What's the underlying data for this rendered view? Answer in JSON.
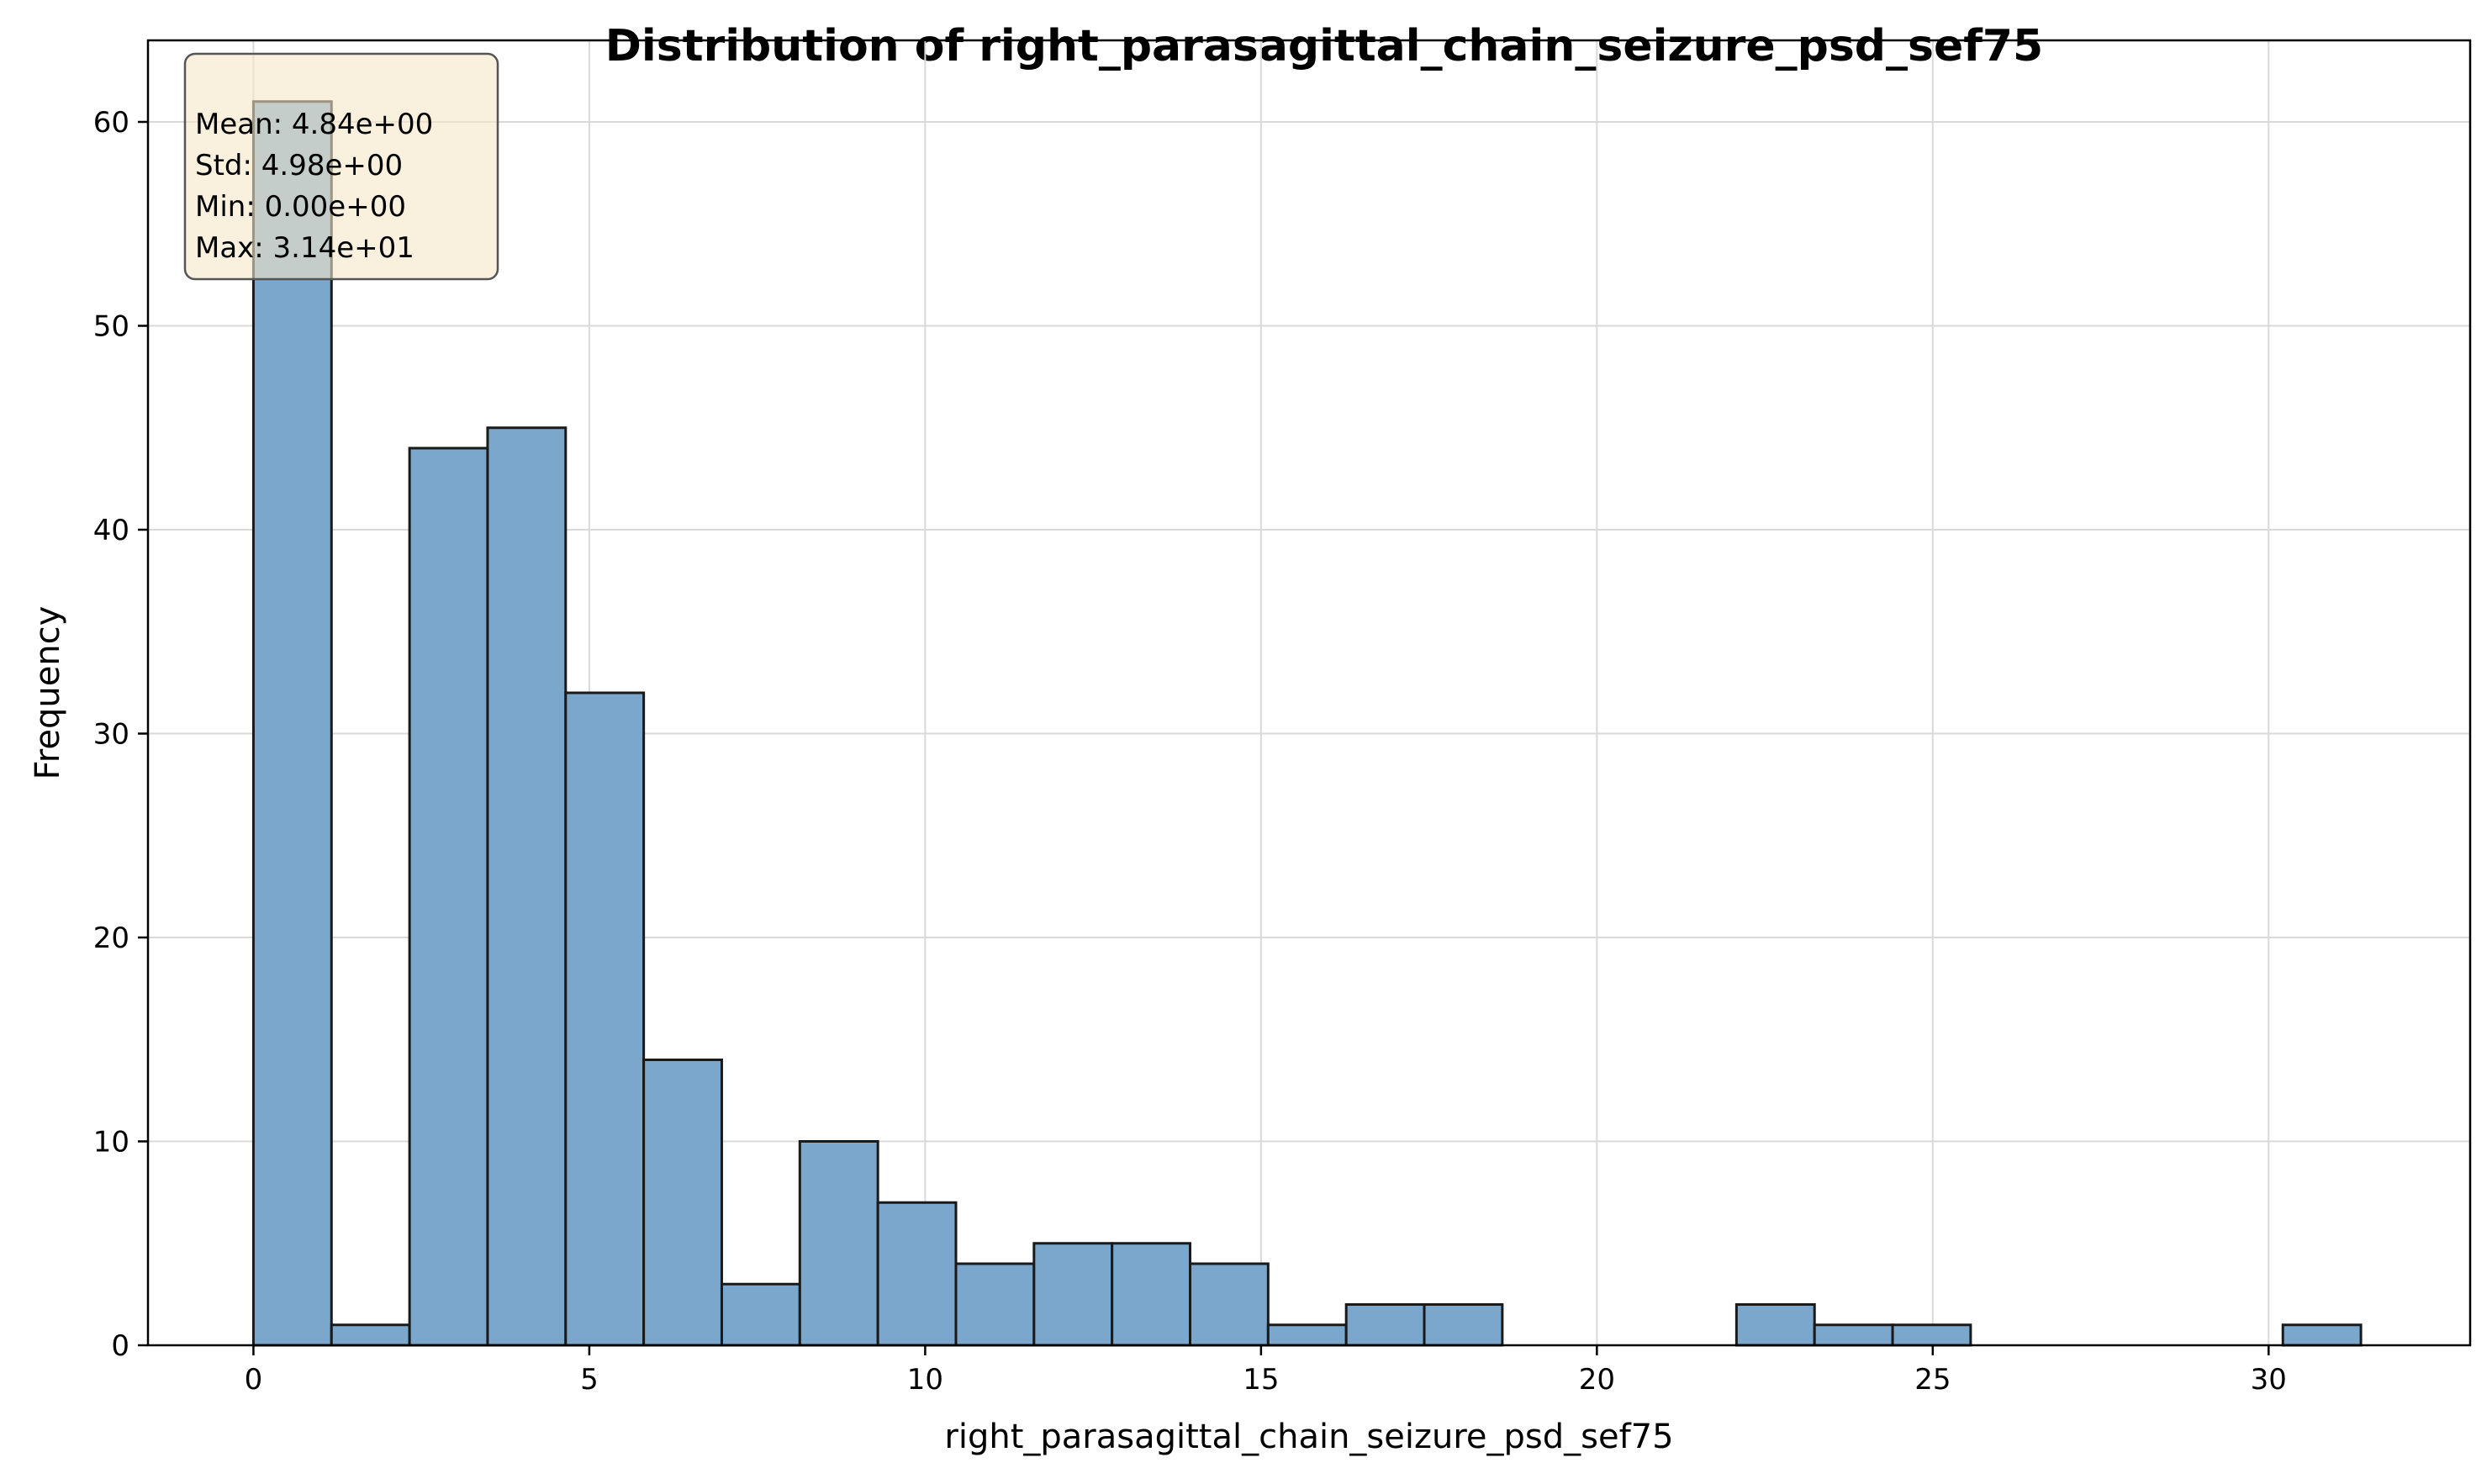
{
  "chart_data": {
    "type": "bar",
    "title": "Distribution of right_parasagittal_chain_seizure_psd_sef75",
    "xlabel": "right_parasagittal_chain_seizure_psd_sef75",
    "ylabel": "Frequency",
    "xlim": [
      -1.57,
      33.0
    ],
    "ylim": [
      0,
      64
    ],
    "xticks": [
      0,
      5,
      10,
      15,
      20,
      25,
      30
    ],
    "yticks": [
      0,
      10,
      20,
      30,
      40,
      50,
      60
    ],
    "grid": true,
    "bins": {
      "start": 0.0,
      "width": 1.162,
      "counts": [
        61,
        1,
        44,
        45,
        32,
        14,
        3,
        10,
        7,
        4,
        5,
        5,
        4,
        1,
        2,
        2,
        0,
        0,
        0,
        2,
        1,
        1,
        0,
        0,
        0,
        0,
        1
      ]
    },
    "bar_color": "#7ba7cc",
    "edge_color": "#1a1a1a",
    "stats_box": {
      "lines": [
        "Mean: 4.84e+00",
        "Std: 4.98e+00",
        "Min: 0.00e+00",
        "Max: 3.14e+01"
      ],
      "background": "#f5e6c8"
    }
  }
}
